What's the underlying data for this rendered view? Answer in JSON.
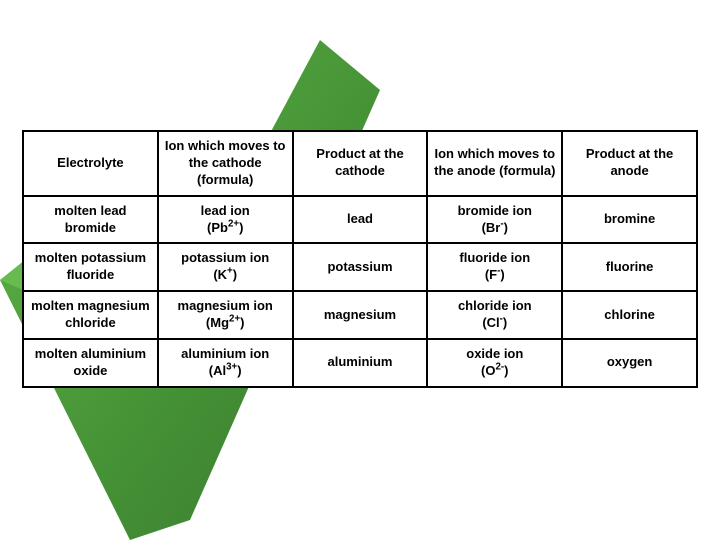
{
  "background": {
    "checkmark_fill": "#3a8a2a",
    "checkmark_shadow": "#2f6f22"
  },
  "table": {
    "border_color": "#000000",
    "columns": [
      {
        "label": "Electrolyte"
      },
      {
        "label": "Ion which moves to the cathode (formula)"
      },
      {
        "label": "Product at the cathode"
      },
      {
        "label": "Ion which moves to the anode (formula)"
      },
      {
        "label": "Product at the anode"
      }
    ],
    "rows": [
      {
        "electrolyte": "molten lead bromide",
        "cathode_ion_name": "lead ion",
        "cathode_ion_formula_html": "(Pb<sup>2+</sup>)",
        "cathode_product": "lead",
        "anode_ion_name": "bromide ion",
        "anode_ion_formula_html": "(Br<sup>-</sup>)",
        "anode_product": "bromine"
      },
      {
        "electrolyte": "molten potassium fluoride",
        "cathode_ion_name": "potassium ion",
        "cathode_ion_formula_html": "(K<sup>+</sup>)",
        "cathode_product": "potassium",
        "anode_ion_name": "fluoride ion",
        "anode_ion_formula_html": "(F<sup>-</sup>)",
        "anode_product": "fluorine"
      },
      {
        "electrolyte": "molten magnesium chloride",
        "cathode_ion_name": "magnesium ion",
        "cathode_ion_formula_html": "(Mg<sup>2+</sup>)",
        "cathode_product": "magnesium",
        "anode_ion_name": "chloride ion",
        "anode_ion_formula_html": "(Cl<sup>-</sup>)",
        "anode_product": "chlorine"
      },
      {
        "electrolyte": "molten aluminium oxide",
        "cathode_ion_name": "aluminium ion",
        "cathode_ion_formula_html": "(Al<sup>3+</sup>)",
        "cathode_product": "aluminium",
        "anode_ion_name": "oxide ion",
        "anode_ion_formula_html": "(O<sup>2-</sup>)",
        "anode_product": "oxygen"
      }
    ]
  }
}
